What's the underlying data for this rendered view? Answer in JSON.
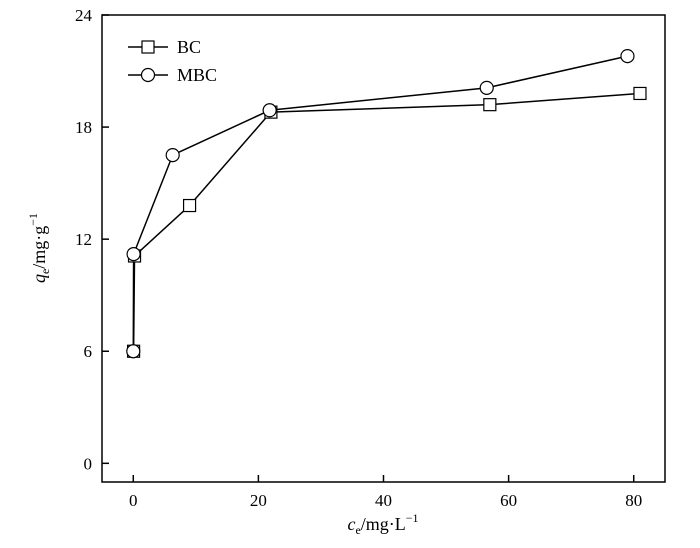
{
  "chart_data": {
    "type": "line",
    "title": "",
    "xlabel": {
      "base": "c",
      "sub": "e",
      "unit": "/mg·L",
      "sup": "−1"
    },
    "ylabel": {
      "base": "q",
      "sub": "e",
      "unit": "/mg·g",
      "sup": "−1"
    },
    "xlim": [
      -5,
      85
    ],
    "ylim": [
      -1,
      24
    ],
    "xticks": [
      0,
      20,
      40,
      60,
      80
    ],
    "yticks": [
      0,
      6,
      12,
      18,
      24
    ],
    "grid": false,
    "legend_position": "top-left",
    "series": [
      {
        "name": "BC",
        "marker": "square",
        "x": [
          0.05,
          0.2,
          9.0,
          22.0,
          57.0,
          81.0
        ],
        "y": [
          6.0,
          11.1,
          13.8,
          18.8,
          19.2,
          19.8
        ]
      },
      {
        "name": "MBC",
        "marker": "circle",
        "x": [
          0.0,
          0.05,
          6.3,
          21.8,
          56.5,
          79.0
        ],
        "y": [
          6.0,
          11.2,
          16.5,
          18.9,
          20.1,
          21.8
        ]
      }
    ]
  }
}
